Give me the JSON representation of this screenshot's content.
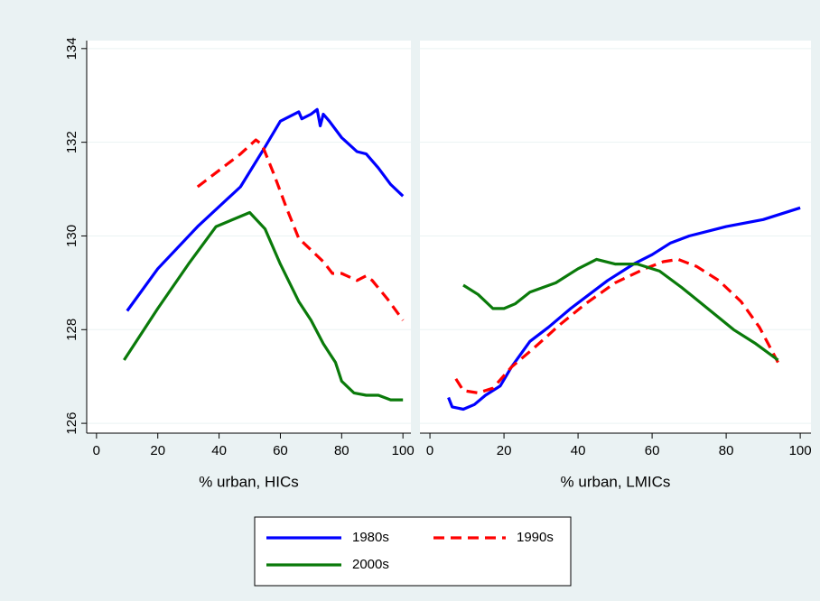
{
  "chart_data": [
    {
      "type": "line",
      "x_label": "% urban, HICs",
      "xlim": [
        -3.2,
        102.6
      ],
      "xticks": [
        0,
        20,
        40,
        60,
        80,
        100
      ],
      "ylim": [
        125.79,
        134.17
      ],
      "yticks": [
        126,
        128,
        130,
        132,
        134
      ],
      "show_ytick_labels": true,
      "grid": true,
      "series": [
        {
          "name": "1980s",
          "color": "#0000ff",
          "dashed": false,
          "x": [
            10,
            20,
            33,
            47,
            55,
            60,
            66,
            67,
            70,
            72,
            73,
            74,
            76,
            80,
            85,
            88,
            92,
            96,
            100
          ],
          "values": [
            128.4,
            129.3,
            130.2,
            131.05,
            131.9,
            132.45,
            132.65,
            132.5,
            132.6,
            132.7,
            132.35,
            132.6,
            132.45,
            132.1,
            131.8,
            131.75,
            131.45,
            131.1,
            130.85
          ]
        },
        {
          "name": "1990s",
          "color": "#ff0000",
          "dashed": true,
          "x": [
            33,
            40,
            47,
            52,
            54,
            58,
            62,
            66,
            70,
            74,
            77,
            80,
            85,
            88,
            90,
            95,
            100
          ],
          "values": [
            131.05,
            131.4,
            131.75,
            132.05,
            131.95,
            131.3,
            130.6,
            129.95,
            129.7,
            129.45,
            129.2,
            129.2,
            129.05,
            129.15,
            129.05,
            128.65,
            128.2
          ]
        },
        {
          "name": "2000s",
          "color": "#0a7a0a",
          "dashed": false,
          "x": [
            9,
            20,
            30,
            39,
            50,
            55,
            60,
            66,
            70,
            74,
            76,
            78,
            80,
            84,
            88,
            92,
            96,
            100
          ],
          "values": [
            127.35,
            128.45,
            129.4,
            130.2,
            130.5,
            130.15,
            129.4,
            128.6,
            128.2,
            127.7,
            127.5,
            127.3,
            126.9,
            126.65,
            126.6,
            126.6,
            126.5,
            126.5
          ]
        }
      ]
    },
    {
      "type": "line",
      "x_label": "% urban, LMICs",
      "xlim": [
        -2.7,
        102.9
      ],
      "xticks": [
        0,
        20,
        40,
        60,
        80,
        100
      ],
      "ylim": [
        125.79,
        134.17
      ],
      "yticks": [
        126,
        128,
        130,
        132,
        134
      ],
      "show_ytick_labels": false,
      "grid": true,
      "series": [
        {
          "name": "1980s",
          "color": "#0000ff",
          "dashed": false,
          "x": [
            5,
            6,
            9,
            12,
            15,
            19,
            22,
            27,
            32,
            38,
            43,
            48,
            55,
            60,
            65,
            70,
            80,
            90,
            100
          ],
          "values": [
            126.55,
            126.35,
            126.3,
            126.4,
            126.6,
            126.8,
            127.2,
            127.75,
            128.05,
            128.45,
            128.75,
            129.05,
            129.4,
            129.6,
            129.85,
            130.0,
            130.2,
            130.35,
            130.6
          ]
        },
        {
          "name": "1990s",
          "color": "#ff0000",
          "dashed": true,
          "x": [
            7,
            9,
            13,
            17,
            22,
            28,
            35,
            42,
            50,
            58,
            63,
            67,
            72,
            78,
            84,
            89,
            94
          ],
          "values": [
            126.95,
            126.7,
            126.65,
            126.75,
            127.2,
            127.6,
            128.1,
            128.55,
            129.0,
            129.3,
            129.45,
            129.5,
            129.35,
            129.05,
            128.6,
            128.05,
            127.3
          ]
        },
        {
          "name": "2000s",
          "color": "#0a7a0a",
          "dashed": false,
          "x": [
            9,
            13,
            17,
            20,
            23,
            27,
            34,
            40,
            45,
            50,
            56,
            62,
            68,
            75,
            82,
            88,
            94
          ],
          "values": [
            128.95,
            128.75,
            128.45,
            128.45,
            128.55,
            128.8,
            129.0,
            129.3,
            129.5,
            129.4,
            129.4,
            129.25,
            128.9,
            128.45,
            128.0,
            127.7,
            127.35
          ]
        }
      ]
    }
  ]
}
